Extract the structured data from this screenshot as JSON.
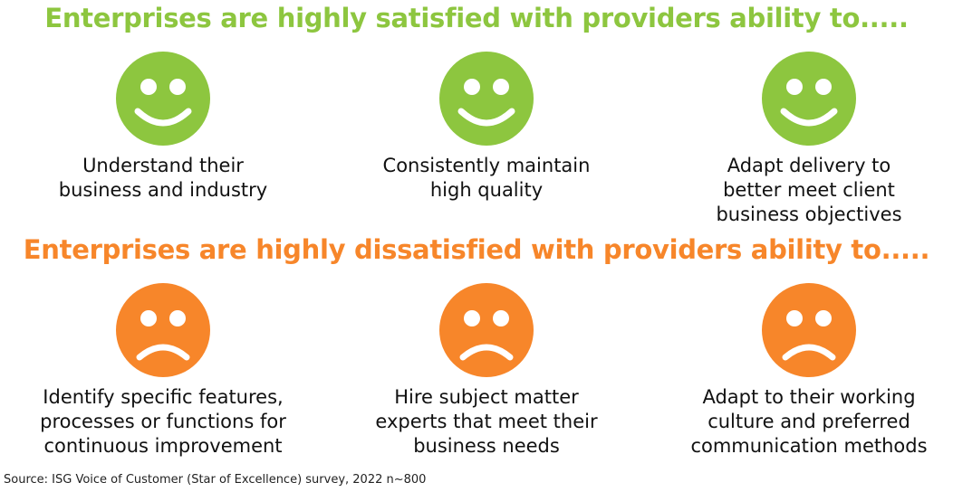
{
  "satisfied": {
    "heading": "Enterprises are highly satisfied with providers ability to.....",
    "items": [
      "Understand their\nbusiness and industry",
      "Consistently maintain\nhigh quality",
      "Adapt delivery to\nbetter meet client\nbusiness objectives"
    ]
  },
  "dissatisfied": {
    "heading": "Enterprises are highly dissatisfied with providers ability to.....",
    "items": [
      "Identify specific features,\nprocesses or functions for\ncontinuous improvement",
      "Hire subject matter\nexperts that meet their\nbusiness needs",
      "Adapt to their working\nculture and preferred\ncommunication methods"
    ]
  },
  "source": "Source: ISG Voice of Customer (Star of Excellence) survey, 2022 n~800"
}
